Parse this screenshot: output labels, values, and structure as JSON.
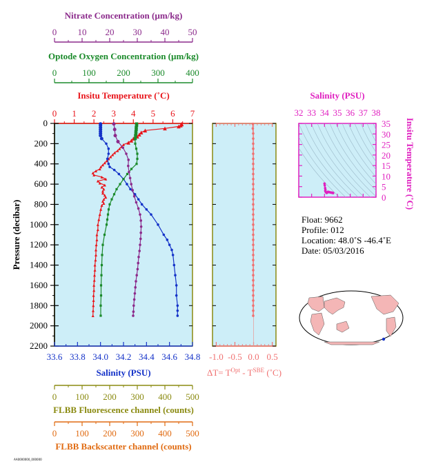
{
  "main_plot": {
    "pressure_label": "Pressure (decibar)",
    "pressure_ticks": [
      0,
      200,
      400,
      600,
      800,
      1000,
      1200,
      1400,
      1600,
      1800,
      2000,
      2200
    ],
    "pressure_lim": [
      0,
      2200
    ],
    "background": "#cdeef8"
  },
  "axes": {
    "nitrate": {
      "label": "Nitrate Concentration (µm/kg)",
      "ticks": [
        0,
        10,
        20,
        30,
        40,
        50
      ],
      "lim": [
        0,
        50
      ],
      "color": "#8b2a8b"
    },
    "oxygen": {
      "label": "Optode Oxygen Concentration (µm/kg)",
      "ticks": [
        0,
        100,
        200,
        300,
        400
      ],
      "lim": [
        0,
        400
      ],
      "color": "#1a8a2a"
    },
    "temperature": {
      "label": "Insitu Temperature (˚C)",
      "ticks": [
        0,
        1,
        2,
        3,
        4,
        5,
        6,
        7
      ],
      "lim": [
        0,
        7
      ],
      "color": "#e8141a"
    },
    "salinity": {
      "label": "Salinity (PSU)",
      "ticks": [
        "33.6",
        "33.8",
        "34.0",
        "34.2",
        "34.4",
        "34.6",
        "34.8"
      ],
      "lim": [
        33.6,
        34.8
      ],
      "color": "#1432c8"
    },
    "fluorescence": {
      "label": "FLBB Fluorescence channel (counts)",
      "ticks": [
        0,
        100,
        200,
        300,
        400,
        500
      ],
      "lim": [
        0,
        500
      ],
      "color": "#8a8a10"
    },
    "backscatter": {
      "label": "FLBB Backscatter channel (counts)",
      "ticks": [
        0,
        100,
        200,
        300,
        400,
        500
      ],
      "lim": [
        0,
        500
      ],
      "color": "#e06a10"
    }
  },
  "dt_plot": {
    "label_prefix": "ΔT= T",
    "label_sup1": "Opt",
    "label_mid": " - T",
    "label_sup2": "SBE",
    "label_suffix": " (˚C)",
    "ticks": [
      "-1.0",
      "-0.5",
      "0.0",
      "0.5"
    ],
    "lim": [
      -1.1,
      0.6
    ],
    "color": "#f07070"
  },
  "ts_plot": {
    "title": "Salinity (PSU)",
    "x_ticks": [
      32,
      33,
      34,
      35,
      36,
      37,
      38
    ],
    "x_lim": [
      32,
      38
    ],
    "y_label": "Insitu Temperature (˚C)",
    "y_ticks": [
      0,
      5,
      10,
      15,
      20,
      25,
      30,
      35
    ],
    "y_lim": [
      0,
      35
    ],
    "color": "#e020c0"
  },
  "info": {
    "float": "Float:  9662",
    "profile": "Profile:  012",
    "location": "Location:  48.0˚S  -46.4˚E",
    "date": "Date:  05/03/2016"
  },
  "footer_note": "AA0000000_000000",
  "chart_data": {
    "type": "line",
    "y_axis": "pressure",
    "series": [
      {
        "name": "Insitu Temperature",
        "color": "#e8141a",
        "pressure": [
          5,
          10,
          20,
          30,
          50,
          70,
          90,
          110,
          130,
          150,
          170,
          190,
          210,
          230,
          250,
          270,
          290,
          310,
          330,
          350,
          370,
          390,
          410,
          430,
          450,
          470,
          490,
          510,
          530,
          550,
          570,
          590,
          610,
          630,
          650,
          670,
          690,
          710,
          730,
          750,
          770,
          790,
          810,
          850,
          900,
          950,
          1000,
          1050,
          1100,
          1150,
          1200,
          1250,
          1300,
          1350,
          1400,
          1450,
          1500,
          1550,
          1600,
          1650,
          1700,
          1750,
          1800,
          1850,
          1900
        ],
        "values": [
          6.45,
          6.45,
          6.4,
          6.3,
          5.6,
          4.6,
          4.4,
          4.3,
          4.2,
          4.0,
          3.9,
          3.75,
          3.5,
          3.4,
          3.3,
          3.2,
          3.05,
          2.95,
          2.85,
          2.75,
          2.65,
          2.55,
          2.45,
          2.35,
          2.3,
          2.1,
          1.95,
          2.0,
          2.4,
          2.6,
          2.2,
          2.3,
          2.55,
          2.4,
          2.5,
          2.45,
          2.45,
          2.55,
          2.6,
          2.5,
          2.45,
          2.5,
          2.4,
          2.35,
          2.3,
          2.25,
          2.2,
          2.2,
          2.15,
          2.15,
          2.12,
          2.1,
          2.1,
          2.08,
          2.05,
          2.05,
          2.03,
          2.02,
          2.0,
          2.0,
          1.98,
          1.98,
          1.97,
          1.96,
          1.95
        ]
      },
      {
        "name": "Salinity",
        "color": "#1432c8",
        "pressure": [
          5,
          20,
          40,
          60,
          80,
          100,
          120,
          150,
          200,
          250,
          300,
          350,
          400,
          430,
          460,
          500,
          550,
          600,
          650,
          700,
          750,
          800,
          850,
          900,
          1000,
          1100,
          1150,
          1200,
          1250,
          1300,
          1400,
          1500,
          1600,
          1700,
          1800,
          1850,
          1900
        ],
        "values": [
          34.0,
          34.0,
          34.0,
          34.0,
          34.0,
          34.0,
          34.0,
          34.01,
          34.05,
          34.07,
          34.07,
          34.06,
          34.07,
          34.08,
          34.12,
          34.16,
          34.2,
          34.23,
          34.26,
          34.3,
          34.33,
          34.36,
          34.4,
          34.44,
          34.5,
          34.55,
          34.58,
          34.6,
          34.62,
          34.63,
          34.64,
          34.65,
          34.66,
          34.66,
          34.67,
          34.67,
          34.67
        ]
      },
      {
        "name": "Optode Oxygen Concentration",
        "color": "#1a8a2a",
        "pressure": [
          5,
          20,
          40,
          60,
          80,
          100,
          120,
          150,
          200,
          250,
          300,
          350,
          400,
          450,
          500,
          550,
          600,
          650,
          700,
          750,
          800,
          850,
          900,
          950,
          1000,
          1100,
          1200,
          1300,
          1400,
          1500,
          1600,
          1700,
          1800,
          1900
        ],
        "values": [
          238,
          238,
          237,
          237,
          236,
          236,
          235,
          234,
          234,
          237,
          240,
          240,
          238,
          223,
          211,
          200,
          190,
          180,
          173,
          166,
          160,
          157,
          155,
          153,
          151,
          145,
          140,
          138,
          137,
          136,
          135,
          135,
          134,
          134
        ]
      },
      {
        "name": "Nitrate Concentration",
        "color": "#8b2a8b",
        "pressure": [
          5,
          60,
          120,
          180,
          240,
          300,
          360,
          420,
          480,
          540,
          600,
          660,
          720,
          780,
          840,
          900,
          960,
          1020,
          1080,
          1140,
          1200,
          1260,
          1320,
          1380,
          1440,
          1500,
          1560,
          1620,
          1680,
          1740,
          1800,
          1860,
          1900
        ],
        "values": [
          21.5,
          21.8,
          22.0,
          23.0,
          24.8,
          26.0,
          26.8,
          26.7,
          27.0,
          27.4,
          27.8,
          28.3,
          28.9,
          29.6,
          30.4,
          31.0,
          31.3,
          31.4,
          31.3,
          31.2,
          31.0,
          30.8,
          30.5,
          30.3,
          30.1,
          29.8,
          29.5,
          29.3,
          29.1,
          28.9,
          28.7,
          28.6,
          28.5
        ]
      },
      {
        "name": "ΔT= TOpt - TSBE",
        "color": "#f07070",
        "pressure": [
          5,
          50,
          100,
          150,
          200,
          250,
          300,
          350,
          400,
          450,
          500,
          550,
          600,
          650,
          700,
          750,
          800,
          850,
          900,
          950,
          1000,
          1050,
          1100,
          1150,
          1200,
          1250,
          1300,
          1350,
          1400,
          1450,
          1500,
          1550,
          1600,
          1650,
          1700,
          1750,
          1800,
          1850,
          1900
        ],
        "values": [
          -0.02,
          -0.02,
          -0.01,
          -0.01,
          -0.01,
          -0.01,
          -0.01,
          -0.01,
          -0.01,
          -0.01,
          -0.01,
          -0.01,
          -0.01,
          -0.01,
          -0.01,
          -0.01,
          -0.01,
          -0.01,
          -0.01,
          -0.01,
          -0.01,
          -0.01,
          -0.01,
          -0.01,
          -0.01,
          -0.01,
          -0.01,
          -0.01,
          -0.01,
          -0.01,
          -0.01,
          -0.01,
          -0.01,
          -0.01,
          -0.01,
          -0.01,
          -0.01,
          -0.01,
          -0.01
        ]
      }
    ],
    "ts_points": {
      "salinity": [
        34.0,
        34.02,
        34.05,
        34.07,
        34.06,
        34.1,
        34.16,
        34.22,
        34.26,
        34.3,
        34.34,
        34.4,
        34.45,
        34.5,
        34.55,
        34.6,
        34.62,
        34.64,
        34.66,
        34.67
      ],
      "temperature": [
        6.45,
        5.6,
        4.3,
        3.5,
        2.95,
        2.45,
        2.0,
        2.2,
        2.5,
        2.5,
        2.45,
        2.35,
        2.25,
        2.2,
        2.15,
        2.1,
        2.08,
        2.05,
        2.0,
        1.95
      ]
    }
  }
}
